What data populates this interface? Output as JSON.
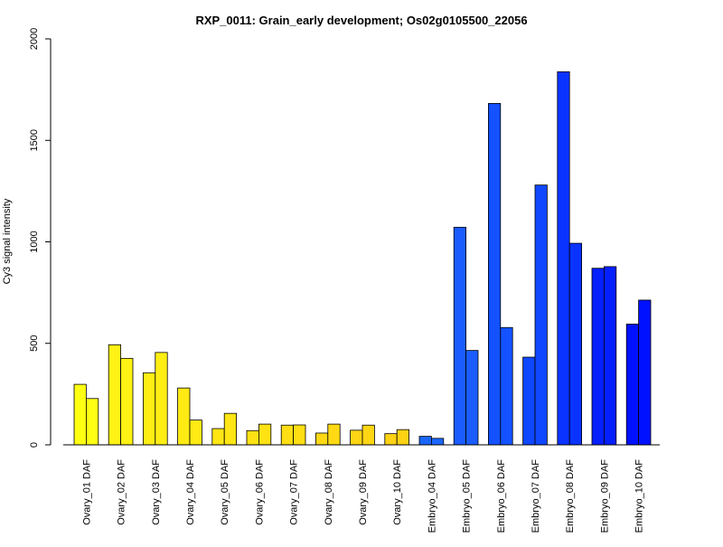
{
  "chart_data": {
    "type": "bar",
    "title": "RXP_0011: Grain_early development; Os02g0105500_22056",
    "xlabel": "",
    "ylabel": "Cy3 signal intensity",
    "ylim": [
      0,
      2000
    ],
    "yticks": [
      0,
      500,
      1000,
      1500,
      2000
    ],
    "grid": false,
    "categories": [
      "Ovary_01 DAF",
      "Ovary_02 DAF",
      "Ovary_03 DAF",
      "Ovary_04 DAF",
      "Ovary_05 DAF",
      "Ovary_06 DAF",
      "Ovary_07 DAF",
      "Ovary_08 DAF",
      "Ovary_09 DAF",
      "Ovary_10 DAF",
      "Embryo_04 DAF",
      "Embryo_05 DAF",
      "Embryo_06 DAF",
      "Embryo_07 DAF",
      "Embryo_08 DAF",
      "Embryo_09 DAF",
      "Embryo_10 DAF"
    ],
    "series": [
      {
        "values": [
          298,
          493,
          355,
          280,
          80,
          70,
          97,
          58,
          72,
          55,
          42,
          1072,
          1682,
          432,
          1838,
          870,
          595
        ]
      },
      {
        "values": [
          228,
          426,
          455,
          122,
          155,
          102,
          98,
          102,
          97,
          75,
          32,
          465,
          578,
          1280,
          993,
          878,
          713
        ]
      }
    ],
    "colors": [
      "#FFFF14",
      "#FFF214",
      "#FFEE14",
      "#FFEA14",
      "#FFE614",
      "#FFE214",
      "#FFDE14",
      "#FFDA14",
      "#FFD614",
      "#FFD214",
      "#1A66FF",
      "#1A5CFF",
      "#1452FF",
      "#0F47FF",
      "#0A33FF",
      "#051FFF",
      "#0011FF"
    ]
  }
}
